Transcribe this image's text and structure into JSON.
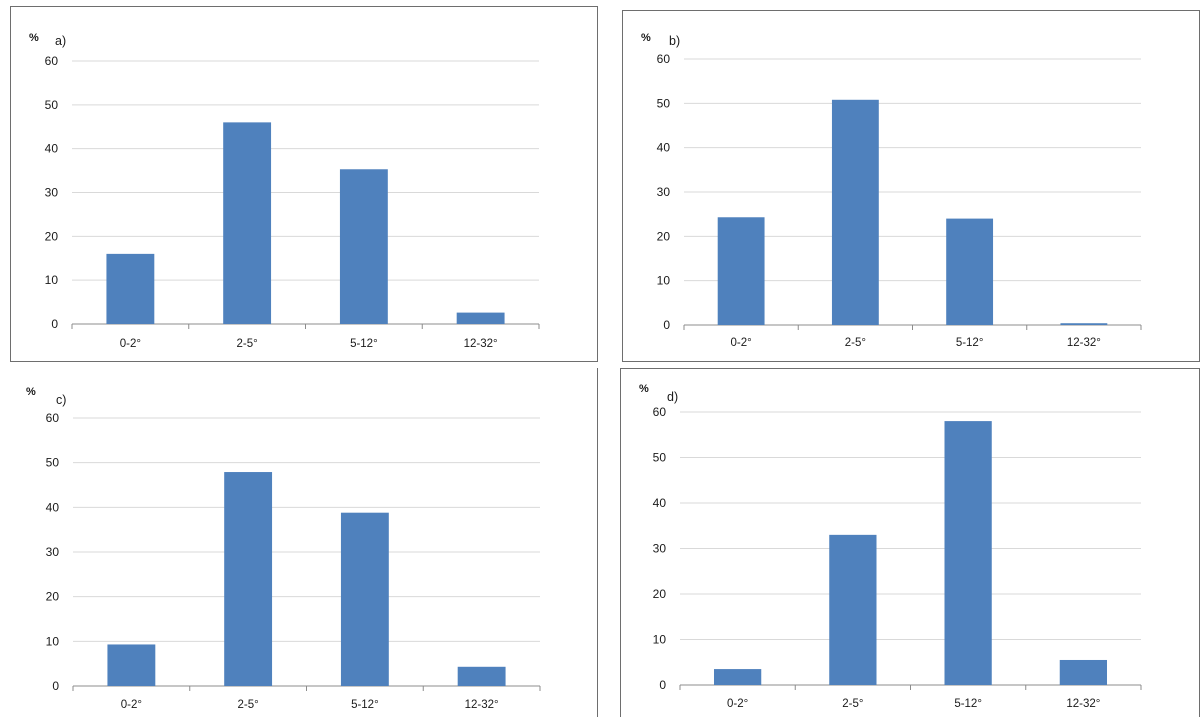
{
  "chart_data": [
    {
      "type": "bar",
      "label": "a)",
      "ylabel": "%",
      "ylim": [
        0,
        60
      ],
      "yticks": [
        0,
        10,
        20,
        30,
        40,
        50,
        60
      ],
      "categories": [
        "0-2°",
        "2-5°",
        "5-12°",
        "12-32°"
      ],
      "values": [
        16,
        46,
        35.3,
        2.6
      ],
      "grid": true,
      "color": "#4f81bd"
    },
    {
      "type": "bar",
      "label": "b)",
      "ylabel": "%",
      "ylim": [
        0,
        60
      ],
      "yticks": [
        0,
        10,
        20,
        30,
        40,
        50,
        60
      ],
      "categories": [
        "0-2°",
        "2-5°",
        "5-12°",
        "12-32°"
      ],
      "values": [
        24.3,
        50.8,
        24,
        0.4
      ],
      "grid": true,
      "color": "#4f81bd"
    },
    {
      "type": "bar",
      "label": "c)",
      "ylabel": "%",
      "ylim": [
        0,
        60
      ],
      "yticks": [
        0,
        10,
        20,
        30,
        40,
        50,
        60
      ],
      "categories": [
        "0-2°",
        "2-5°",
        "5-12°",
        "12-32°"
      ],
      "values": [
        9.3,
        47.9,
        38.8,
        4.3
      ],
      "grid": true,
      "color": "#4f81bd"
    },
    {
      "type": "bar",
      "label": "d)",
      "ylabel": "%",
      "ylim": [
        0,
        60
      ],
      "yticks": [
        0,
        10,
        20,
        30,
        40,
        50,
        60
      ],
      "categories": [
        "0-2°",
        "2-5°",
        "5-12°",
        "12-32°"
      ],
      "values": [
        3.5,
        33,
        58,
        5.5
      ],
      "grid": true,
      "color": "#4f81bd"
    }
  ]
}
